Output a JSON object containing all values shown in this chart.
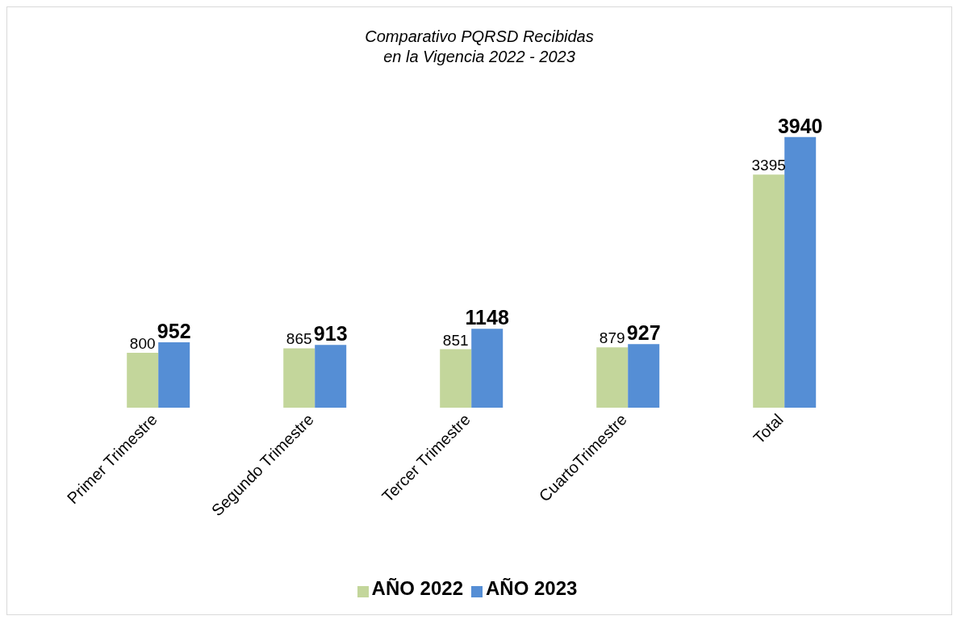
{
  "chart_data": {
    "type": "bar",
    "title": "Comparativo PQRSD Recibidas\nen la Vigencia 2022 - 2023",
    "categories": [
      "Primer Trimestre",
      "Segundo Trimestre",
      "Tercer Trimestre",
      "CuartoTrimestre",
      "Total"
    ],
    "series": [
      {
        "name": "AÑO 2022",
        "color": "#c3d69b",
        "values": [
          800,
          865,
          851,
          879,
          3395
        ]
      },
      {
        "name": "AÑO 2023",
        "color": "#558ed5",
        "values": [
          952,
          913,
          1148,
          927,
          3940
        ]
      }
    ],
    "data_labels": true,
    "legend": "bottom",
    "grid": false
  }
}
